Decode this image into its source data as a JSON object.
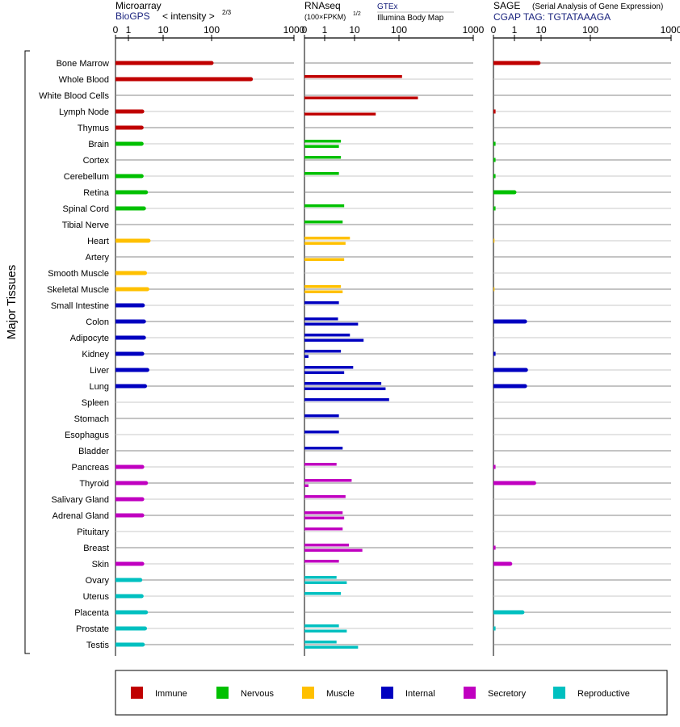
{
  "side_label": "Major Tissues",
  "panels": [
    {
      "id": "microarray",
      "title": "Microarray",
      "source": "BioGPS",
      "subtitle": "< intensity >",
      "exponent": "2/3",
      "ticks": [
        "0",
        "1",
        "10",
        "100",
        "1000"
      ]
    },
    {
      "id": "rnaseq",
      "title": "RNAseq",
      "subtitle": "(100×FPKM)",
      "exponent": "1/2",
      "source1": "GTEx",
      "source2": "Illumina Body Map",
      "ticks": [
        "0",
        "1",
        "10",
        "100",
        "1000"
      ]
    },
    {
      "id": "sage",
      "title": "SAGE",
      "title_note": "(Serial Analysis of Gene Expression)",
      "source": "CGAP TAG: TGTATAAAGA",
      "ticks": [
        "0",
        "1",
        "10",
        "100",
        "1000"
      ]
    }
  ],
  "legend": [
    {
      "name": "Immune",
      "color": "#c00000"
    },
    {
      "name": "Nervous",
      "color": "#00c000"
    },
    {
      "name": "Muscle",
      "color": "#ffc000"
    },
    {
      "name": "Internal",
      "color": "#0000c0"
    },
    {
      "name": "Secretory",
      "color": "#c000c0"
    },
    {
      "name": "Reproductive",
      "color": "#00c0c0"
    }
  ],
  "chart_data": {
    "type": "bar",
    "orientation": "horizontal",
    "x_scale": "log-like (0, 1, 10, 100, 1000)",
    "xlim": [
      0,
      1000
    ],
    "categories": [
      "Bone Marrow",
      "Whole Blood",
      "White Blood Cells",
      "Lymph Node",
      "Thymus",
      "Brain",
      "Cortex",
      "Cerebellum",
      "Retina",
      "Spinal Cord",
      "Tibial Nerve",
      "Heart",
      "Artery",
      "Smooth Muscle",
      "Skeletal Muscle",
      "Small Intestine",
      "Colon",
      "Adipocyte",
      "Kidney",
      "Liver",
      "Lung",
      "Spleen",
      "Stomach",
      "Esophagus",
      "Bladder",
      "Pancreas",
      "Thyroid",
      "Salivary Gland",
      "Adrenal Gland",
      "Pituitary",
      "Breast",
      "Skin",
      "Ovary",
      "Uterus",
      "Placenta",
      "Prostate",
      "Testis"
    ],
    "groups": [
      "Immune",
      "Immune",
      "Immune",
      "Immune",
      "Immune",
      "Nervous",
      "Nervous",
      "Nervous",
      "Nervous",
      "Nervous",
      "Nervous",
      "Muscle",
      "Muscle",
      "Muscle",
      "Muscle",
      "Internal",
      "Internal",
      "Internal",
      "Internal",
      "Internal",
      "Internal",
      "Internal",
      "Internal",
      "Internal",
      "Internal",
      "Secretory",
      "Secretory",
      "Secretory",
      "Secretory",
      "Secretory",
      "Secretory",
      "Secretory",
      "Reproductive",
      "Reproductive",
      "Reproductive",
      "Reproductive",
      "Reproductive"
    ],
    "series": [
      {
        "name": "Microarray",
        "values": [
          100,
          300,
          null,
          2.5,
          2.4,
          2.4,
          null,
          2.4,
          3.2,
          2.8,
          null,
          3.8,
          null,
          3,
          3.5,
          2.6,
          2.8,
          2.8,
          2.5,
          3.5,
          3,
          null,
          null,
          null,
          null,
          2.5,
          3.2,
          2.5,
          2.5,
          null,
          null,
          2.5,
          2.2,
          2.4,
          3.2,
          3,
          2.6
        ]
      },
      {
        "name": "GTEx",
        "values": [
          null,
          110,
          null,
          null,
          null,
          3.5,
          3.5,
          3,
          null,
          4.5,
          4,
          7,
          null,
          null,
          3.5,
          3,
          2.8,
          7,
          3.5,
          9,
          40,
          60,
          3,
          3,
          4,
          2.5,
          8,
          5,
          4,
          4,
          6.5,
          3,
          2.5,
          3.5,
          null,
          3,
          2.5
        ]
      },
      {
        "name": "Illumina Body Map",
        "values": [
          null,
          null,
          180,
          30,
          null,
          3,
          null,
          null,
          null,
          null,
          null,
          5,
          4.5,
          null,
          4,
          null,
          12,
          16,
          0.2,
          4.5,
          50,
          null,
          null,
          null,
          null,
          null,
          0.2,
          null,
          4.5,
          null,
          15,
          null,
          5.5,
          null,
          null,
          5.5,
          12
        ]
      },
      {
        "name": "SAGE",
        "values": [
          8,
          null,
          null,
          0.1,
          null,
          0.1,
          0.1,
          0.1,
          1,
          0.1,
          null,
          0.05,
          null,
          null,
          0.05,
          null,
          2.5,
          null,
          0.1,
          2.7,
          2.5,
          null,
          null,
          null,
          null,
          0.1,
          5.5,
          null,
          null,
          null,
          0.1,
          0.8,
          null,
          null,
          2,
          0.1,
          null
        ]
      }
    ]
  }
}
